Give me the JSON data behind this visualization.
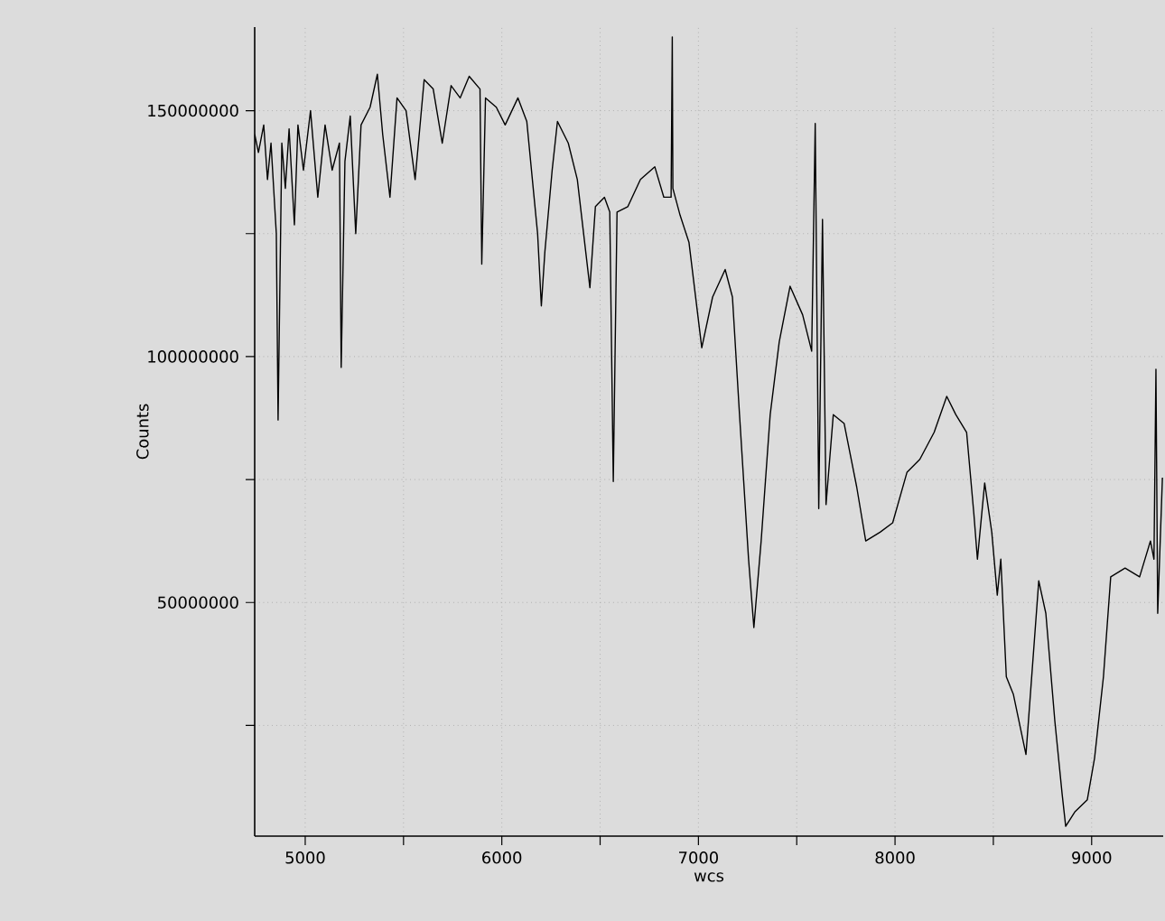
{
  "chart_data": {
    "type": "line",
    "xlabel": "wcs",
    "ylabel": "Counts",
    "color": "#000000",
    "marker": "none",
    "line_style": "solid",
    "grid": true,
    "xlim": [
      4743,
      9364
    ],
    "ylim": [
      2500000,
      167000000
    ],
    "xticks": [
      5000,
      {
        "value": 5500,
        "label": null
      },
      6000,
      {
        "value": 6500,
        "label": null
      },
      7000,
      {
        "value": 7500,
        "label": null
      },
      8000,
      {
        "value": 8500,
        "label": null
      },
      9000
    ],
    "yticks": [
      {
        "value": 25000000,
        "label": null
      },
      50000000,
      {
        "value": 75000000,
        "label": null
      },
      100000000,
      {
        "value": 125000000,
        "label": null
      },
      150000000
    ],
    "x": [
      4743,
      4762,
      4789,
      4808,
      4826,
      4853,
      4862,
      4881,
      4899,
      4918,
      4945,
      4963,
      4991,
      5027,
      5064,
      5101,
      5137,
      5174,
      5183,
      5202,
      5229,
      5257,
      5284,
      5330,
      5367,
      5394,
      5431,
      5467,
      5513,
      5559,
      5605,
      5651,
      5697,
      5742,
      5788,
      5834,
      5889,
      5898,
      5917,
      5972,
      6017,
      6082,
      6127,
      6164,
      6182,
      6201,
      6219,
      6256,
      6283,
      6338,
      6384,
      6448,
      6476,
      6522,
      6549,
      6567,
      6586,
      6641,
      6705,
      6778,
      6824,
      6861,
      6867,
      6870,
      6907,
      6952,
      7017,
      7072,
      7136,
      7173,
      7209,
      7255,
      7282,
      7319,
      7365,
      7411,
      7466,
      7530,
      7576,
      7594,
      7612,
      7631,
      7649,
      7686,
      7741,
      7805,
      7851,
      7924,
      7988,
      8061,
      8126,
      8199,
      8263,
      8309,
      8364,
      8401,
      8419,
      8456,
      8492,
      8520,
      8538,
      8566,
      8602,
      8666,
      8731,
      8767,
      8813,
      8850,
      8868,
      8914,
      8978,
      9015,
      9060,
      9097,
      9170,
      9244,
      9299,
      9317,
      9327,
      9336,
      9360
    ],
    "values": [
      145200000,
      141500000,
      147100000,
      136000000,
      143400000,
      125000000,
      87100000,
      143400000,
      134200000,
      146300000,
      126800000,
      147100000,
      137900000,
      150000000,
      132400000,
      147100000,
      137900000,
      143400000,
      97800000,
      139700000,
      148900000,
      125000000,
      147100000,
      150700000,
      157400000,
      145200000,
      132400000,
      152600000,
      150000000,
      136000000,
      156300000,
      154400000,
      143400000,
      155100000,
      152600000,
      157000000,
      154400000,
      118800000,
      152600000,
      150700000,
      147100000,
      152600000,
      147800000,
      132400000,
      125000000,
      110300000,
      121300000,
      137900000,
      147800000,
      143400000,
      136000000,
      114000000,
      130500000,
      132400000,
      129400000,
      74600000,
      129400000,
      130500000,
      136000000,
      138600000,
      132400000,
      132400000,
      165000000,
      134200000,
      128700000,
      123200000,
      101800000,
      112100000,
      117700000,
      112100000,
      88200000,
      58800000,
      44900000,
      62500000,
      88200000,
      103000000,
      114300000,
      108500000,
      101100000,
      147400000,
      69100000,
      127900000,
      69900000,
      88200000,
      86400000,
      73500000,
      62500000,
      64300000,
      66200000,
      76500000,
      79100000,
      84600000,
      91900000,
      88200000,
      84600000,
      68000000,
      58800000,
      74300000,
      64300000,
      51500000,
      58800000,
      34900000,
      31300000,
      19100000,
      54400000,
      47800000,
      25800000,
      11000000,
      4500000,
      7400000,
      9900000,
      18400000,
      34900000,
      55200000,
      57000000,
      55200000,
      62500000,
      58800000,
      97400000,
      47800000,
      75400000
    ]
  }
}
